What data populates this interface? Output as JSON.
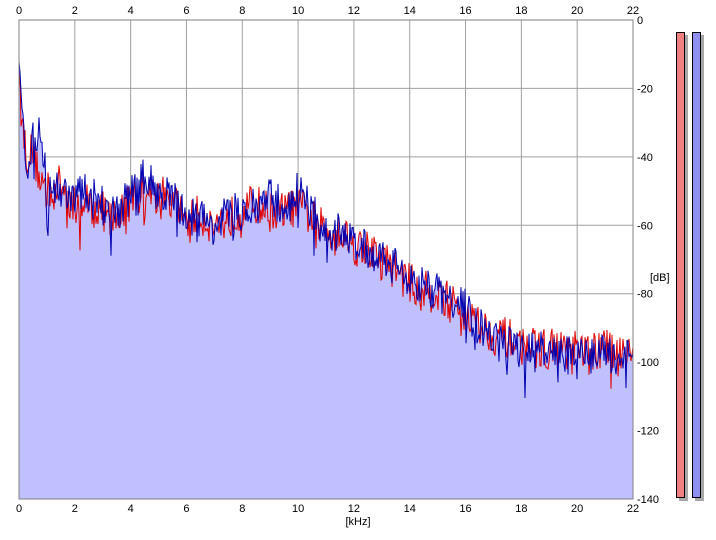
{
  "chart_data": {
    "type": "area",
    "xlabel": "[kHz]",
    "ylabel": "[dB]",
    "xlim": [
      0,
      22
    ],
    "ylim": [
      -140,
      0
    ],
    "x_ticks": [
      "0",
      "2",
      "4",
      "6",
      "8",
      "10",
      "12",
      "14",
      "16",
      "18",
      "20",
      "22"
    ],
    "y_ticks": [
      "0",
      "-20",
      "-40",
      "-60",
      "-80",
      "-100",
      "-120",
      "-140"
    ],
    "grid": true,
    "series": [
      {
        "channel": "left",
        "color": "#e00000",
        "x": [
          0,
          0.1,
          0.3,
          0.5,
          0.7,
          1,
          1.5,
          2,
          2.5,
          3,
          3.5,
          4,
          4.5,
          5,
          5.5,
          6,
          6.5,
          7,
          7.5,
          8,
          8.5,
          9,
          9.5,
          10,
          10.5,
          11,
          11.5,
          12,
          12.5,
          13,
          13.5,
          14,
          14.5,
          15,
          15.5,
          16,
          16.5,
          17,
          17.5,
          18,
          18.5,
          19,
          19.5,
          20,
          20.5,
          21,
          21.5,
          22
        ],
        "values": [
          -15,
          -30,
          -40,
          -38,
          -45,
          -50,
          -48,
          -55,
          -53,
          -56,
          -58,
          -52,
          -50,
          -51,
          -53,
          -58,
          -57,
          -60,
          -58,
          -55,
          -54,
          -56,
          -56,
          -54,
          -58,
          -62,
          -61,
          -66,
          -67,
          -70,
          -73,
          -77,
          -79,
          -80,
          -83,
          -86,
          -89,
          -92,
          -93,
          -95,
          -96,
          -96,
          -96,
          -97,
          -97,
          -96,
          -96,
          -96
        ]
      },
      {
        "channel": "right",
        "color": "#0000b0",
        "x": [
          0,
          0.1,
          0.3,
          0.5,
          0.7,
          1,
          1.5,
          2,
          2.5,
          3,
          3.5,
          4,
          4.5,
          5,
          5.5,
          6,
          6.5,
          7,
          7.5,
          8,
          8.5,
          9,
          9.5,
          10,
          10.5,
          11,
          11.5,
          12,
          12.5,
          13,
          13.5,
          14,
          14.5,
          15,
          15.5,
          16,
          16.5,
          17,
          17.5,
          18,
          18.5,
          19,
          19.5,
          20,
          20.5,
          21,
          21.5,
          22
        ],
        "values": [
          -14,
          -28,
          -42,
          -36,
          -32,
          -48,
          -50,
          -52,
          -50,
          -54,
          -56,
          -51,
          -46,
          -50,
          -52,
          -57,
          -58,
          -60,
          -57,
          -56,
          -55,
          -52,
          -55,
          -50,
          -56,
          -63,
          -62,
          -64,
          -68,
          -69,
          -72,
          -75,
          -78,
          -80,
          -82,
          -84,
          -90,
          -94,
          -95,
          -96,
          -97,
          -97,
          -98,
          -99,
          -98,
          -98,
          -98,
          -98
        ]
      }
    ],
    "area_fill": "#c0c0ff",
    "level_meters": [
      {
        "channel": "left",
        "color": "#f08080"
      },
      {
        "channel": "right",
        "color": "#9090f0"
      }
    ]
  }
}
